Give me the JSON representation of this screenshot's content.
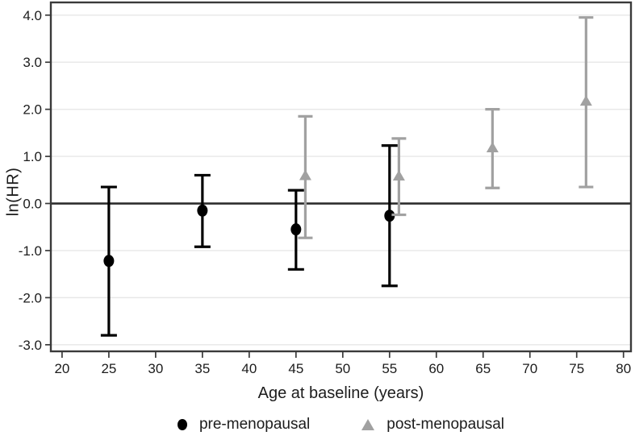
{
  "figure": {
    "background": "#ffffff",
    "text_color": "#1c1c1c"
  },
  "chart_data": {
    "type": "scatter",
    "subtype": "point-estimates-with-error-bars",
    "title": "",
    "xlabel": "Age at baseline (years)",
    "ylabel": "ln(HR)",
    "x_range": [
      18.8,
      80.8
    ],
    "y_range": [
      -3.14,
      4.27
    ],
    "x_ticks": [
      20,
      25,
      30,
      35,
      40,
      45,
      50,
      55,
      60,
      65,
      70,
      75,
      80
    ],
    "x_tick_labels": [
      "20",
      "25",
      "30",
      "35",
      "40",
      "45",
      "50",
      "55",
      "60",
      "65",
      "70",
      "75",
      "80"
    ],
    "y_ticks": [
      4,
      3,
      2,
      1,
      0,
      -1,
      -2,
      -3
    ],
    "y_tick_labels": [
      "4.0",
      "3.0",
      "2.0",
      "1.0",
      "0.0",
      "-1.0",
      "-2.0",
      "-3.0"
    ],
    "grid": "horizontal",
    "gridline_color": "#e7e7e7",
    "zero_line": {
      "y": 0,
      "color": "#2d2d2d"
    },
    "border_color": "#3a3a3a",
    "tick_color": "#3a3a3a",
    "legend_position": "bottom-center",
    "series": [
      {
        "name": "pre-menopausal",
        "marker": "circle",
        "color": "#000000",
        "points": [
          {
            "x": 25,
            "y": -1.22,
            "ci_low": -2.8,
            "ci_high": 0.35
          },
          {
            "x": 35,
            "y": -0.15,
            "ci_low": -0.92,
            "ci_high": 0.6
          },
          {
            "x": 45,
            "y": -0.55,
            "ci_low": -1.4,
            "ci_high": 0.28
          },
          {
            "x": 55,
            "y": -0.26,
            "ci_low": -1.75,
            "ci_high": 1.23
          }
        ]
      },
      {
        "name": "post-menopausal",
        "marker": "triangle",
        "color": "#a1a1a1",
        "points": [
          {
            "x": 46,
            "y": 0.6,
            "ci_low": -0.73,
            "ci_high": 1.85
          },
          {
            "x": 56,
            "y": 0.59,
            "ci_low": -0.24,
            "ci_high": 1.38
          },
          {
            "x": 66,
            "y": 1.19,
            "ci_low": 0.33,
            "ci_high": 2.0
          },
          {
            "x": 76,
            "y": 2.18,
            "ci_low": 0.35,
            "ci_high": 3.95
          }
        ]
      }
    ]
  }
}
